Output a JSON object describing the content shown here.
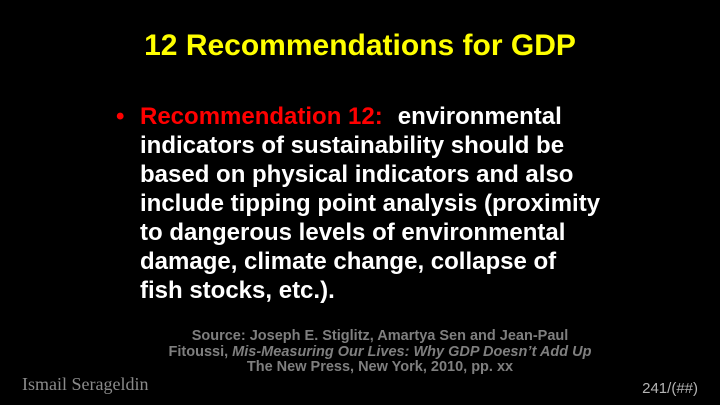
{
  "slide": {
    "title": "12 Recommendations for GDP",
    "bullet": {
      "marker": "•",
      "lead": "Recommendation 12:",
      "first_line_rest": "environmental",
      "lines": [
        "indicators of sustainability should be",
        "based on physical indicators and also",
        "include tipping point analysis (proximity",
        "to dangerous levels of environmental",
        "damage, climate change, collapse of",
        "fish stocks, etc.)."
      ]
    },
    "source": {
      "line1": "Source: Joseph E. Stiglitz, Amartya Sen and Jean-Paul",
      "line2_plain": "Fitoussi, ",
      "line2_italic": "Mis-Measuring Our Lives: Why GDP Doesn’t Add Up",
      "line3": "The New Press, New York, 2010, pp. xx"
    },
    "footer": {
      "author": "Ismail Serageldin",
      "page_number": "241/(##)"
    },
    "colors": {
      "background": "#000000",
      "title_text": "#ffff00",
      "highlight_red": "#ff0000",
      "body_text": "#ffffff",
      "source_text": "#7f7f7f",
      "author_text": "#8a8a8a",
      "page_number_text": "#b4b4b4"
    }
  }
}
